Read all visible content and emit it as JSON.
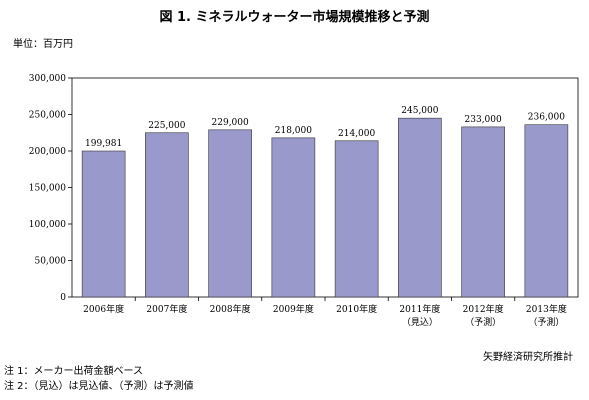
{
  "title": "図 1. ミネラルウォーター市場規模推移と予測",
  "unit_label": "単位：百万円",
  "source": "矢野経済研究所推計",
  "notes": [
    "注 1：メーカー出荷金額ベース",
    "注 2：（見込）は見込値、（予測）は予測値"
  ],
  "colors": {
    "bar": "#9999cc",
    "bar_stroke": "#333333"
  },
  "chart_data": {
    "type": "bar",
    "categories": [
      [
        "2006年度"
      ],
      [
        "2007年度"
      ],
      [
        "2008年度"
      ],
      [
        "2009年度"
      ],
      [
        "2010年度"
      ],
      [
        "2011年度",
        "（見込）"
      ],
      [
        "2012年度",
        "（予測）"
      ],
      [
        "2013年度",
        "（予測）"
      ]
    ],
    "values": [
      199981,
      225000,
      229000,
      218000,
      214000,
      245000,
      233000,
      236000
    ],
    "data_labels": [
      "199,981",
      "225,000",
      "229,000",
      "218,000",
      "214,000",
      "245,000",
      "233,000",
      "236,000"
    ],
    "yticks": [
      "0",
      "50,000",
      "100,000",
      "150,000",
      "200,000",
      "250,000",
      "300,000"
    ],
    "ylim": [
      0,
      300000
    ],
    "grid": false
  }
}
